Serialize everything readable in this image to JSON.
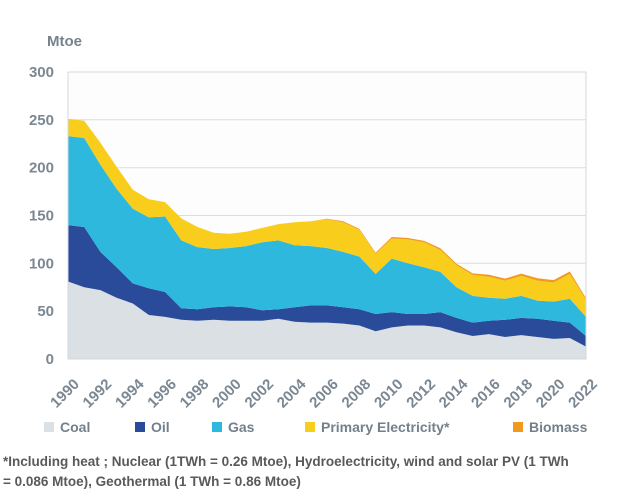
{
  "page": {
    "background": "#ffffff"
  },
  "chart": {
    "unit_label": "Mtoe"
  },
  "chart_data": {
    "type": "area",
    "stacked": true,
    "title": "",
    "ylabel": "Mtoe",
    "xlabel": "",
    "ylim": [
      0,
      300
    ],
    "yticks": [
      0,
      50,
      100,
      150,
      200,
      250,
      300
    ],
    "grid": true,
    "legend_position": "bottom",
    "x": [
      1990,
      1991,
      1992,
      1993,
      1994,
      1995,
      1996,
      1997,
      1998,
      1999,
      2000,
      2001,
      2002,
      2003,
      2004,
      2005,
      2006,
      2007,
      2008,
      2009,
      2010,
      2011,
      2012,
      2013,
      2014,
      2015,
      2016,
      2017,
      2018,
      2019,
      2020,
      2021,
      2022
    ],
    "x_tick_labels": [
      "1990",
      "1992",
      "1994",
      "1996",
      "1998",
      "2000",
      "2002",
      "2004",
      "2006",
      "2008",
      "2010",
      "2012",
      "2014",
      "2016",
      "2018",
      "2020",
      "2022"
    ],
    "series": [
      {
        "name": "Coal",
        "color": "#dbe0e5",
        "values": [
          81,
          75,
          72,
          64,
          58,
          46,
          44,
          41,
          40,
          41,
          40,
          40,
          40,
          42,
          39,
          38,
          38,
          37,
          35,
          29,
          33,
          35,
          35,
          33,
          28,
          24,
          26,
          23,
          25,
          23,
          21,
          22,
          13
        ]
      },
      {
        "name": "Oil",
        "color": "#2a4b9a",
        "values": [
          59,
          63,
          40,
          32,
          21,
          28,
          26,
          12,
          12,
          13,
          15,
          14,
          11,
          10,
          15,
          18,
          18,
          17,
          17,
          18,
          16,
          12,
          12,
          16,
          15,
          14,
          14,
          18,
          18,
          19,
          19,
          16,
          11
        ]
      },
      {
        "name": "Gas",
        "color": "#2eb8dd",
        "values": [
          93,
          93,
          91,
          82,
          78,
          74,
          79,
          71,
          65,
          61,
          61,
          64,
          71,
          72,
          65,
          62,
          60,
          58,
          55,
          42,
          56,
          53,
          49,
          42,
          32,
          28,
          24,
          22,
          23,
          19,
          20,
          25,
          20
        ]
      },
      {
        "name": "Primary Electricity*",
        "color": "#f8cd1c",
        "values": [
          18,
          18,
          23,
          23,
          20,
          19,
          15,
          23,
          21,
          17,
          15,
          15,
          15,
          17,
          24,
          26,
          30,
          31,
          28,
          21,
          21,
          25,
          26,
          23,
          23,
          22,
          22,
          19,
          21,
          21,
          20,
          26,
          18
        ]
      },
      {
        "name": "Biomass",
        "color": "#f0991e",
        "values": [
          0,
          0,
          0,
          0,
          0,
          0,
          0,
          0,
          0,
          0,
          0,
          0,
          0,
          0,
          0,
          0,
          0.5,
          1,
          1,
          1,
          1.5,
          1.5,
          1.5,
          1.8,
          1.5,
          1.5,
          2,
          2,
          2.3,
          2.5,
          2.5,
          2.5,
          1.5
        ]
      }
    ]
  },
  "footnote": {
    "line1": "*Including heat ; Nuclear (1TWh = 0.26 Mtoe), Hydroelectricity, wind and solar PV (1 TWh",
    "line2": "= 0.086 Mtoe), Geothermal (1 TWh = 0.86 Mtoe)"
  },
  "colors": {
    "axis_text": "#7b8793",
    "legend_text": "#73808c",
    "footnote_text": "#595959",
    "gridline": "#d9dde2",
    "plot_border": "#d3d9de",
    "plot_bg": "#fdfdfe"
  }
}
